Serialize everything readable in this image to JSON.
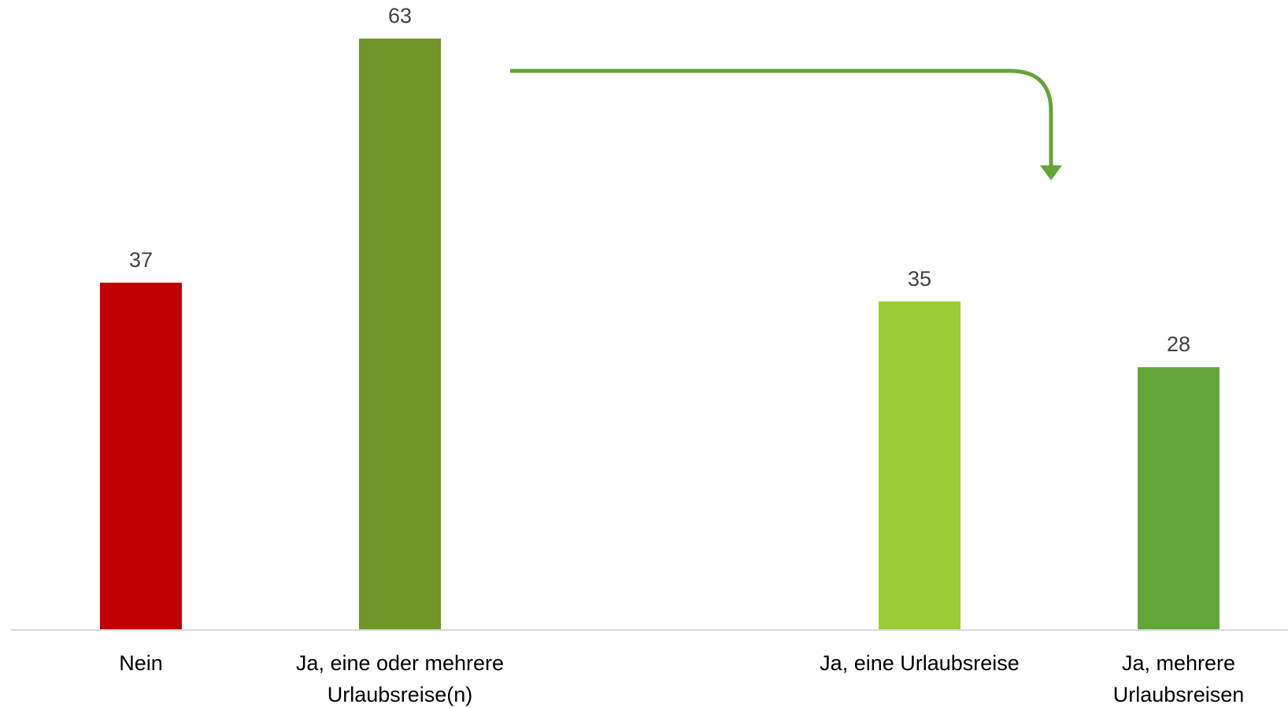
{
  "chart_data": {
    "type": "bar",
    "categories": [
      [
        "Nein"
      ],
      [
        "Ja, eine oder mehrere",
        "Urlaubsreise(n)"
      ],
      [
        "Ja, eine Urlaubsreise"
      ],
      [
        "Ja, mehrere",
        "Urlaubsreisen"
      ]
    ],
    "values": [
      37,
      63,
      35,
      28
    ],
    "value_labels": [
      "37",
      "63",
      "35",
      "28"
    ],
    "colors": [
      "#C00000",
      "#6E9628",
      "#9ACD37",
      "#62A637"
    ],
    "ylim": [
      0,
      63
    ],
    "grid": false,
    "legend": "none",
    "annotation": {
      "type": "arrow",
      "from_category": 1,
      "to_category": 2,
      "color": "#62A637"
    }
  }
}
